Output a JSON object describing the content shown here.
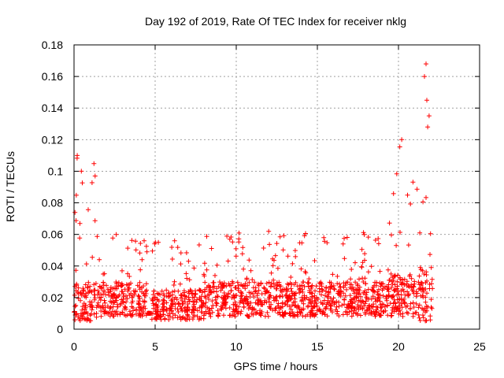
{
  "chart_data": {
    "type": "scatter",
    "title": "Day 192 of 2019, Rate Of TEC Index for receiver nklg",
    "xlabel": "GPS time / hours",
    "ylabel": "ROTI / TECUs",
    "xlim": [
      0,
      25
    ],
    "ylim": [
      0,
      0.18
    ],
    "xticks": [
      "0",
      "5",
      "10",
      "15",
      "20",
      "25"
    ],
    "yticks": [
      "0",
      "0.02",
      "0.04",
      "0.06",
      "0.08",
      "0.1",
      "0.12",
      "0.14",
      "0.16",
      "0.18"
    ],
    "grid": true,
    "marker": "+",
    "color": "#ff0000",
    "segments": [
      {
        "x": [
          0.0,
          1.6
        ],
        "base": [
          0.005,
          0.03
        ],
        "peak": 0.11
      },
      {
        "x": [
          1.6,
          4.5
        ],
        "base": [
          0.008,
          0.03
        ],
        "peak": 0.06
      },
      {
        "x": [
          4.5,
          4.8
        ],
        "base": [
          0.01,
          0.01
        ],
        "peak": 0.01
      },
      {
        "x": [
          4.8,
          8.0
        ],
        "base": [
          0.006,
          0.025
        ],
        "peak": 0.056
      },
      {
        "x": [
          8.0,
          19.4
        ],
        "base": [
          0.008,
          0.03
        ],
        "peak": 0.062
      },
      {
        "x": [
          19.4,
          21.2
        ],
        "base": [
          0.008,
          0.035
        ],
        "peak": 0.12
      },
      {
        "x": [
          21.2,
          22.1
        ],
        "base": [
          0.005,
          0.04
        ],
        "peak": 0.168
      }
    ],
    "highlights": [
      {
        "x": 0.2,
        "y": 0.11
      },
      {
        "x": 0.45,
        "y": 0.1
      },
      {
        "x": 1.3,
        "y": 0.097
      },
      {
        "x": 2.6,
        "y": 0.06
      },
      {
        "x": 5.2,
        "y": 0.055
      },
      {
        "x": 6.2,
        "y": 0.056
      },
      {
        "x": 9.6,
        "y": 0.057
      },
      {
        "x": 12.0,
        "y": 0.062
      },
      {
        "x": 15.4,
        "y": 0.058
      },
      {
        "x": 20.2,
        "y": 0.12
      },
      {
        "x": 21.7,
        "y": 0.168
      },
      {
        "x": 21.6,
        "y": 0.16
      },
      {
        "x": 21.75,
        "y": 0.145
      },
      {
        "x": 21.8,
        "y": 0.128
      }
    ]
  }
}
